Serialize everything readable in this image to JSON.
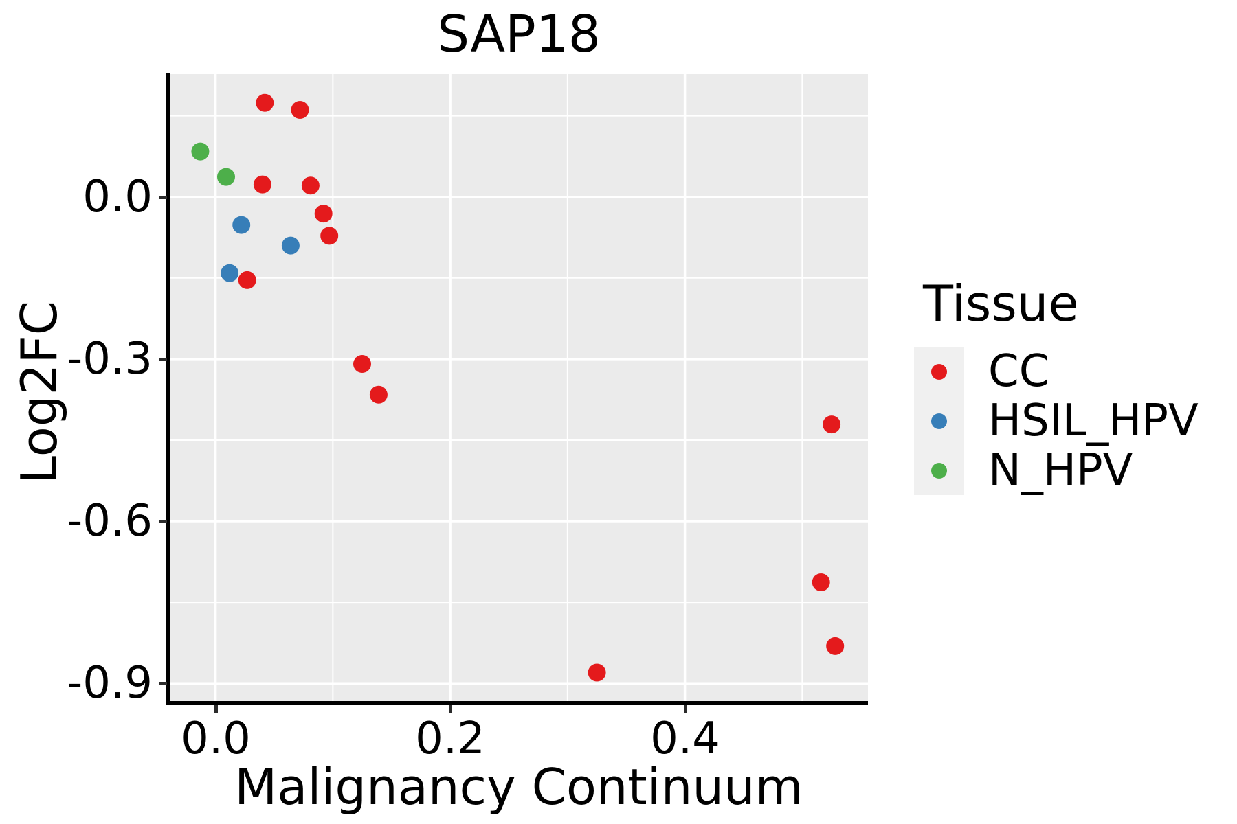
{
  "title": "SAP18",
  "x_axis": {
    "label": "Malignancy Continuum",
    "ticks": [
      {
        "value": 0.0,
        "label": "0.0"
      },
      {
        "value": 0.2,
        "label": "0.2"
      },
      {
        "value": 0.4,
        "label": "0.4"
      }
    ]
  },
  "y_axis": {
    "label": "Log2FC",
    "ticks": [
      {
        "value": 0.0,
        "label": "0.0"
      },
      {
        "value": -0.3,
        "label": "-0.3"
      },
      {
        "value": -0.6,
        "label": "-0.6"
      },
      {
        "value": -0.9,
        "label": "-0.9"
      }
    ]
  },
  "legend": {
    "title": "Tissue",
    "position": "right",
    "items": [
      {
        "label": "CC",
        "color": "#E41A1C"
      },
      {
        "label": "HSIL_HPV",
        "color": "#377EB8"
      },
      {
        "label": "N_HPV",
        "color": "#4DAF4A"
      }
    ]
  },
  "colors": {
    "panel_background": "#EBEBEB",
    "gridline": "#FFFFFF",
    "axis_line": "#000000",
    "tick_mark": "#2B2B2B",
    "legend_key_background": "#F0F0F0"
  },
  "chart_data": {
    "type": "scatter",
    "title": "SAP18",
    "xlabel": "Malignancy Continuum",
    "ylabel": "Log2FC",
    "xlim": [
      -0.039,
      0.556
    ],
    "ylim": [
      -0.934,
      0.227
    ],
    "grid": {
      "major_x": [
        0.0,
        0.2,
        0.4
      ],
      "minor_x": [
        0.1,
        0.3,
        0.5
      ],
      "major_y": [
        0.0,
        -0.3,
        -0.6,
        -0.9
      ],
      "minor_y": [
        0.15,
        -0.15,
        -0.45,
        -0.75
      ]
    },
    "legend_position": "right",
    "point_radius_px": 13,
    "series": [
      {
        "name": "CC",
        "color": "#E41A1C",
        "points": [
          [
            0.042,
            0.174
          ],
          [
            0.072,
            0.161
          ],
          [
            0.04,
            0.023
          ],
          [
            0.081,
            0.021
          ],
          [
            0.092,
            -0.031
          ],
          [
            0.097,
            -0.072
          ],
          [
            0.027,
            -0.154
          ],
          [
            0.125,
            -0.309
          ],
          [
            0.139,
            -0.366
          ],
          [
            0.525,
            -0.421
          ],
          [
            0.516,
            -0.713
          ],
          [
            0.528,
            -0.831
          ],
          [
            0.325,
            -0.88
          ]
        ]
      },
      {
        "name": "HSIL_HPV",
        "color": "#377EB8",
        "points": [
          [
            0.022,
            -0.052
          ],
          [
            0.064,
            -0.09
          ],
          [
            0.012,
            -0.141
          ]
        ]
      },
      {
        "name": "N_HPV",
        "color": "#4DAF4A",
        "points": [
          [
            -0.013,
            0.084
          ],
          [
            0.009,
            0.037
          ]
        ]
      }
    ]
  }
}
